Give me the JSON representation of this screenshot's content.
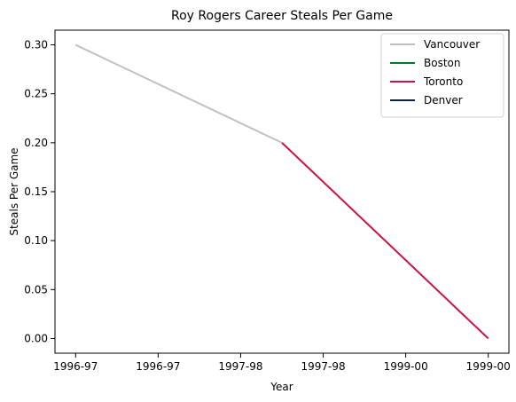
{
  "chart_data": {
    "type": "line",
    "title": "Roy Rogers  Career Steals Per Game",
    "xlabel": "Year",
    "ylabel": "Steals Per Game",
    "xlim": [
      -0.1,
      2.1
    ],
    "ylim": [
      -0.015,
      0.315
    ],
    "x_ticks": [
      {
        "x": 0.0,
        "label": "1996-97"
      },
      {
        "x": 0.4,
        "label": "1996-97"
      },
      {
        "x": 0.8,
        "label": "1997-98"
      },
      {
        "x": 1.2,
        "label": "1997-98"
      },
      {
        "x": 1.6,
        "label": "1999-00"
      },
      {
        "x": 2.0,
        "label": "1999-00"
      }
    ],
    "y_ticks": [
      {
        "y": 0.0,
        "label": "0.00"
      },
      {
        "y": 0.05,
        "label": "0.05"
      },
      {
        "y": 0.1,
        "label": "0.10"
      },
      {
        "y": 0.15,
        "label": "0.15"
      },
      {
        "y": 0.2,
        "label": "0.20"
      },
      {
        "y": 0.25,
        "label": "0.25"
      },
      {
        "y": 0.3,
        "label": "0.30"
      }
    ],
    "grid": false,
    "legend_position": "top-right",
    "series": [
      {
        "name": "Vancouver",
        "color": "#c0c0c0",
        "points": [
          [
            0.0,
            0.3
          ],
          [
            1.0,
            0.2
          ]
        ]
      },
      {
        "name": "Boston",
        "color": "#007a33",
        "points": []
      },
      {
        "name": "Toronto",
        "color": "#ce1141",
        "points": [
          [
            1.0,
            0.2
          ],
          [
            2.0,
            0.0
          ]
        ]
      },
      {
        "name": "Denver",
        "color": "#0d2240",
        "points": []
      }
    ]
  }
}
